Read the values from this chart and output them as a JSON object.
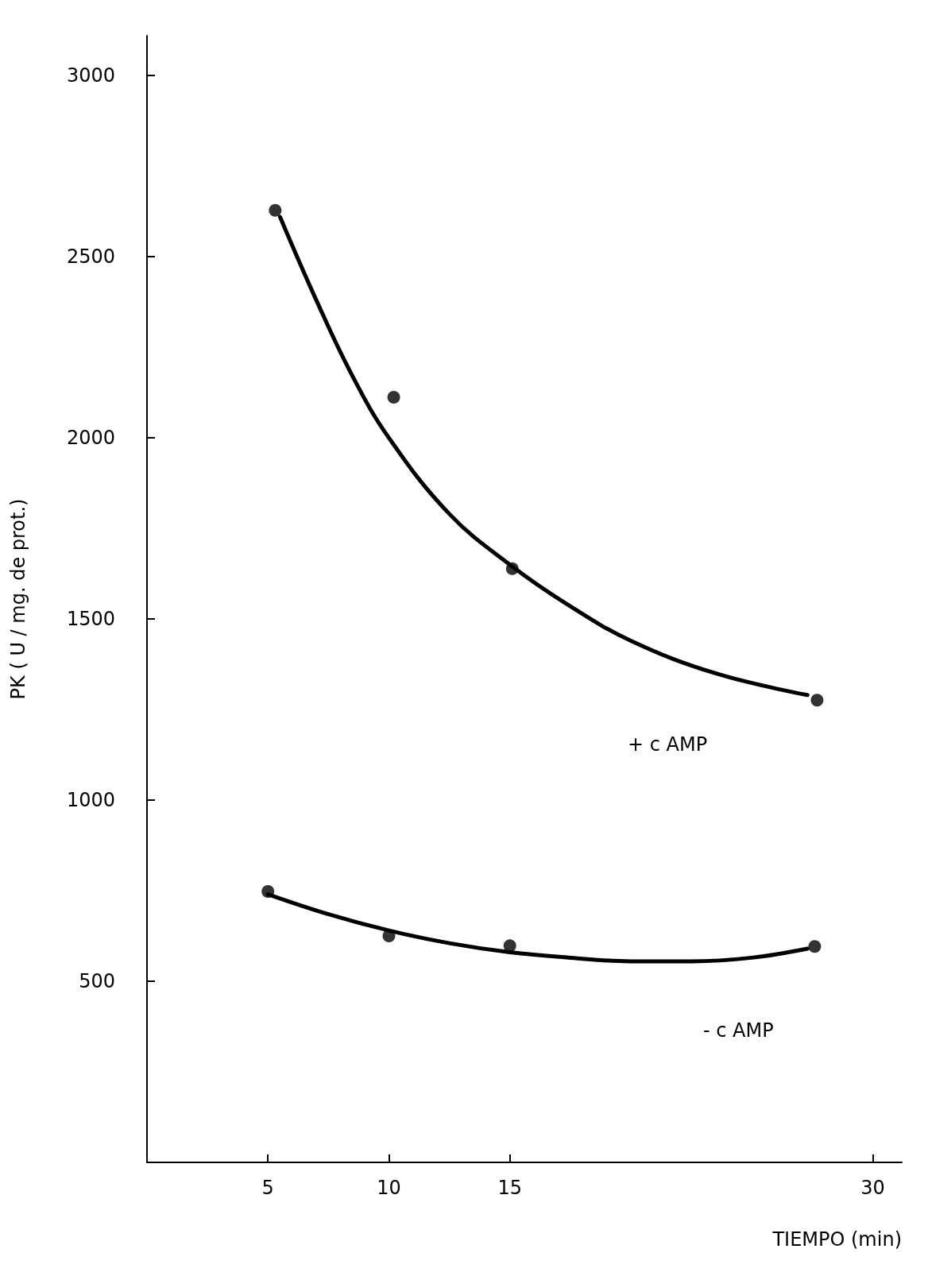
{
  "chart_data": {
    "type": "scatter",
    "xlabel": "TIEMPO (min)",
    "ylabel": "PK ( U / mg. de prot.)",
    "xlim": [
      0,
      31.2
    ],
    "xticks": [
      5,
      10,
      15,
      30
    ],
    "ylim": [
      0,
      3110
    ],
    "yticks": [
      500,
      1000,
      1500,
      2000,
      2500,
      3000
    ],
    "marker": "circle",
    "series": [
      {
        "color": "#000000",
        "x": [
          5.3,
          10.2,
          15.1,
          27.7
        ],
        "values": [
          2628,
          2112,
          1639,
          1276
        ]
      },
      {
        "color": "#000000",
        "x": [
          5,
          10,
          15,
          27.6
        ],
        "values": [
          748,
          625,
          598,
          596
        ]
      },
      {
        "type": "line",
        "color": "#000000",
        "marker": "none",
        "x": [
          5.5,
          7,
          8.5,
          10,
          12.5,
          15,
          17.5,
          20,
          23.5,
          27.3
        ],
        "values": [
          2610,
          2380,
          2170,
          2000,
          1790,
          1650,
          1535,
          1440,
          1350,
          1290
        ]
      },
      {
        "type": "line",
        "color": "#000000",
        "marker": "none",
        "x": [
          5,
          7.5,
          10,
          12.5,
          15,
          17.5,
          20,
          22.5,
          25,
          27.3
        ],
        "values": [
          740,
          685,
          640,
          605,
          580,
          565,
          555,
          555,
          565,
          590
        ]
      }
    ],
    "annotations": [
      "+ c AMP",
      "- c AMP"
    ]
  }
}
